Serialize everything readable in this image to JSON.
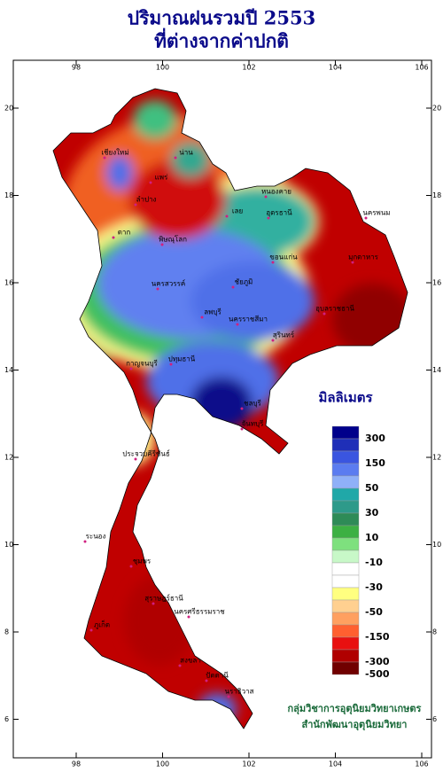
{
  "header": {
    "title": [
      "ปริมาณฝนรวมปี  2553",
      "ที่ต่างจากค่าปกติ"
    ]
  },
  "axes": {
    "lon_ticks": [
      98,
      100,
      102,
      104,
      106
    ],
    "lat_ticks": [
      20,
      18,
      16,
      14,
      12,
      10,
      8,
      6
    ]
  },
  "legend": {
    "title": "มิลลิเมตร",
    "labels": [
      300,
      150,
      50,
      30,
      10,
      -10,
      -30,
      -50,
      -150,
      -300,
      -500
    ],
    "colors": [
      "#00008b",
      "#1f2fb8",
      "#3a55e0",
      "#5b7cf0",
      "#8fb0f8",
      "#20a8a8",
      "#2e9a8a",
      "#2e8b57",
      "#3cb043",
      "#7ee07e",
      "#c8f8c8",
      "#ffffff",
      "#ffffff",
      "#ffff80",
      "#ffd090",
      "#ffa060",
      "#ff6030",
      "#e81010",
      "#b00000",
      "#700000"
    ]
  },
  "places": [
    "เชียงใหม่",
    "น่าน",
    "แพร่",
    "ลำปาง",
    "ตาก",
    "พิษณุโลก",
    "หนองคาย",
    "อุดรธานี",
    "เลย",
    "ขอนแก่น",
    "นครพนม",
    "มุกดาหาร",
    "นครสวรรค์",
    "ชัยภูมิ",
    "นครราชสีมา",
    "อุบลราชธานี",
    "สุรินทร์",
    "ลพบุรี",
    "ปทุมธานี",
    "กาญจนบุรี",
    "ชลบุรี",
    "จันทบุรี",
    "ประจวบคีรีขันธ์",
    "ระนอง",
    "ชุมพร",
    "สุราษฎร์ธานี",
    "นครศรีธรรมราช",
    "ภูเก็ต",
    "สงขลา",
    "ปัตตานี",
    "นราธิวาส"
  ],
  "credit": [
    "กลุ่มวิชาการอุตุนิยมวิทยาเกษตร",
    "สำนักพัฒนาอุตุนิยมวิทยา"
  ]
}
